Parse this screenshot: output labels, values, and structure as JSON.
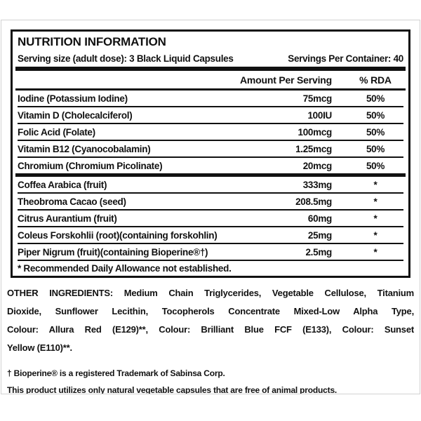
{
  "label": {
    "title": "NUTRITION INFORMATION",
    "serving_size": "Serving size (adult dose): 3 Black Liquid Capsules",
    "servings_per_container": "Servings Per Container: 40",
    "columns": {
      "amount": "Amount Per Serving",
      "rda": "% RDA"
    },
    "nutrients": [
      {
        "name": "Iodine (Potassium Iodine)",
        "amount": "75mcg",
        "rda": "50%"
      },
      {
        "name": "Vitamin D (Cholecalciferol)",
        "amount": "100IU",
        "rda": "50%"
      },
      {
        "name": "Folic Acid (Folate)",
        "amount": "100mcg",
        "rda": "50%"
      },
      {
        "name": "Vitamin B12 (Cyanocobalamin)",
        "amount": "1.25mcg",
        "rda": "50%"
      },
      {
        "name": "Chromium (Chromium Picolinate)",
        "amount": "20mcg",
        "rda": "50%"
      }
    ],
    "botanicals": [
      {
        "name": "Coffea Arabica (fruit)",
        "amount": "333mg",
        "rda": "*"
      },
      {
        "name": "Theobroma Cacao (seed)",
        "amount": "208.5mg",
        "rda": "*"
      },
      {
        "name": "Citrus Aurantium (fruit)",
        "amount": "60mg",
        "rda": "*"
      },
      {
        "name": "Coleus Forskohlii (root)(containing forskohlin)",
        "amount": "25mg",
        "rda": "*"
      },
      {
        "name": "Piper Nigrum (fruit)(containing Bioperine®†)",
        "amount": "2.5mg",
        "rda": "*"
      }
    ],
    "rda_footnote": "* Recommended Daily Allowance not established."
  },
  "other_ingredients": {
    "lines": [
      "OTHER INGREDIENTS: Medium Chain Triglycerides, Vegetable Cellulose, Titanium",
      "Dioxide, Sunflower Lecithin, Tocopherols Concentrate Mixed-Low Alpha Type,",
      "Colour: Allura Red (E129)**, Colour: Brilliant Blue FCF (E133), Colour: Sunset",
      "Yellow (E110)**."
    ]
  },
  "footnotes": {
    "bioperine": "† Bioperine® is a registered Trademark of Sabinsa Corp.",
    "capsules": "This product utilizes only natural vegetable capsules that are free of animal products."
  },
  "colors": {
    "text": "#111111",
    "rule": "#111111",
    "card_border": "#d2d2d2",
    "background": "#ffffff"
  }
}
